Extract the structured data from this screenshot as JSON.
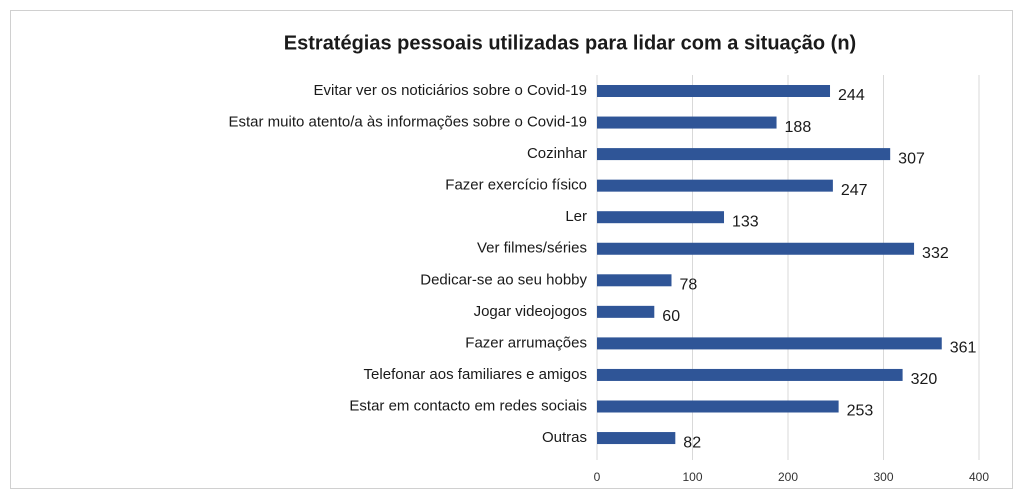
{
  "chart_data": {
    "type": "bar",
    "orientation": "horizontal",
    "title": "Estratégias pessoais utilizadas para lidar com a situação (n)",
    "categories": [
      "Evitar ver os noticiários sobre o Covid-19",
      "Estar muito atento/a às informações sobre o Covid-19",
      "Cozinhar",
      "Fazer exercício físico",
      "Ler",
      "Ver filmes/séries",
      "Dedicar-se ao seu hobby",
      "Jogar videojogos",
      "Fazer arrumações",
      "Telefonar aos familiares e amigos",
      "Estar em contacto em redes sociais",
      "Outras"
    ],
    "values": [
      244,
      188,
      307,
      247,
      133,
      332,
      78,
      60,
      361,
      320,
      253,
      82
    ],
    "color": "#2f5597",
    "xlim": [
      0,
      400
    ],
    "xticks": [
      0,
      100,
      200,
      300,
      400
    ],
    "grid": true
  }
}
